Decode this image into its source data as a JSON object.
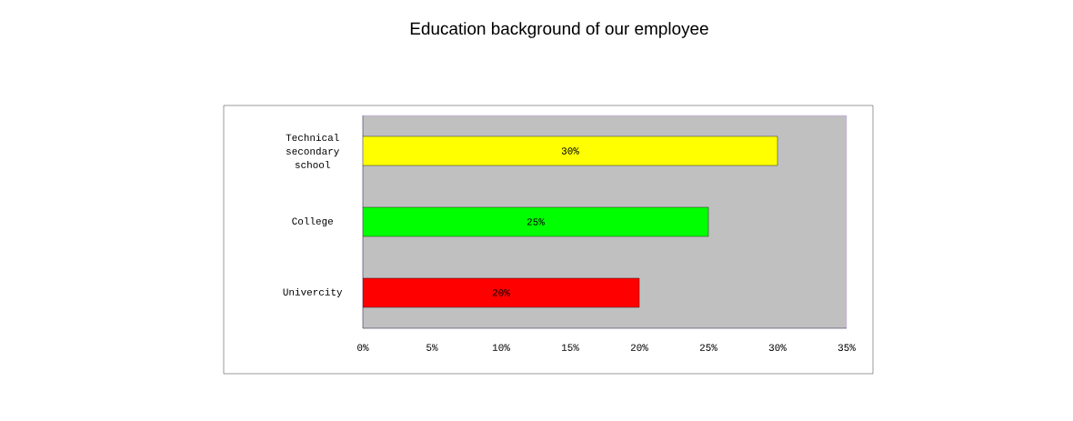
{
  "chart_data": {
    "type": "bar",
    "orientation": "horizontal",
    "title": "Education background of our employee",
    "categories": [
      "Technical secondary school",
      "College",
      "Univercity"
    ],
    "values": [
      30,
      25,
      20
    ],
    "colors": [
      "#ffff00",
      "#00ff00",
      "#ff0000"
    ],
    "value_labels": [
      "30%",
      "25%",
      "20%"
    ],
    "xlim": [
      0,
      35
    ],
    "xticks": [
      {
        "value": 0,
        "label": "0%"
      },
      {
        "value": 5,
        "label": "5%"
      },
      {
        "value": 10,
        "label": "10%"
      },
      {
        "value": 15,
        "label": "15%"
      },
      {
        "value": 20,
        "label": "20%"
      },
      {
        "value": 25,
        "label": "25%"
      },
      {
        "value": 30,
        "label": "30%"
      },
      {
        "value": 35,
        "label": "35%"
      }
    ]
  }
}
